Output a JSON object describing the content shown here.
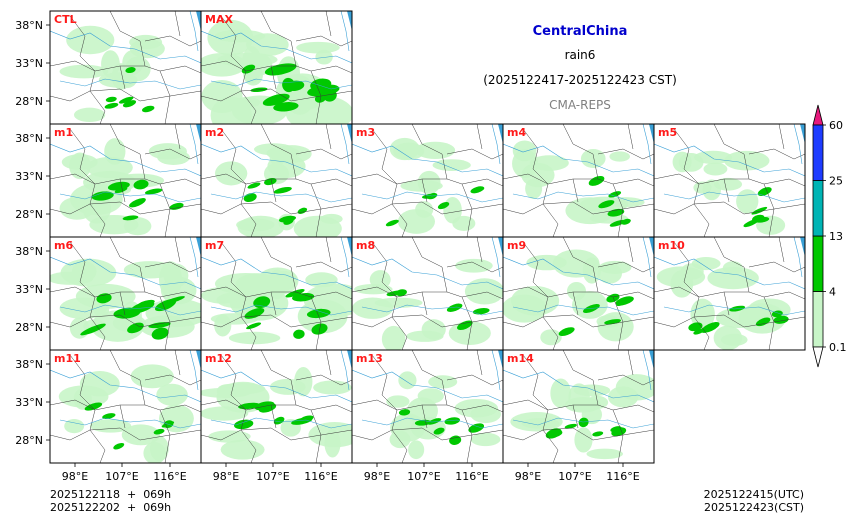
{
  "header": {
    "region": "CentralChina",
    "variable": "rain6",
    "period": "(2025122417-2025122423 CST)",
    "model": "CMA-REPS"
  },
  "panels": [
    {
      "label": "CTL",
      "intensity": 0.35
    },
    {
      "label": "MAX",
      "intensity": 0.95
    },
    {
      "label": "m1",
      "intensity": 0.55
    },
    {
      "label": "m2",
      "intensity": 0.45
    },
    {
      "label": "m3",
      "intensity": 0.25
    },
    {
      "label": "m4",
      "intensity": 0.35
    },
    {
      "label": "m5",
      "intensity": 0.3
    },
    {
      "label": "m6",
      "intensity": 0.75
    },
    {
      "label": "m7",
      "intensity": 0.7
    },
    {
      "label": "m8",
      "intensity": 0.3
    },
    {
      "label": "m9",
      "intensity": 0.4
    },
    {
      "label": "m10",
      "intensity": 0.45
    },
    {
      "label": "m11",
      "intensity": 0.35
    },
    {
      "label": "m12",
      "intensity": 0.5
    },
    {
      "label": "m13",
      "intensity": 0.45
    },
    {
      "label": "m14",
      "intensity": 0.45
    }
  ],
  "axes": {
    "lat_ticks": [
      "38°N",
      "33°N",
      "28°N"
    ],
    "lon_ticks": [
      "98°E",
      "107°E",
      "116°E"
    ]
  },
  "colorbar": {
    "levels": [
      "0.1",
      "4",
      "13",
      "25",
      "60"
    ],
    "colors": [
      "#c8f5c8",
      "#00c800",
      "#00b4b4",
      "#1e3cff",
      "#e6197d"
    ]
  },
  "footer": {
    "init_utc": "2025122118  +  069h",
    "init_cst": "2025122202  +  069h",
    "valid_utc": "2025122415(UTC)",
    "valid_cst": "2025122423(CST)"
  }
}
